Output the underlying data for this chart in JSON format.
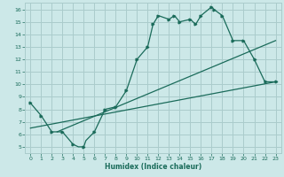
{
  "bg_color": "#cce8e8",
  "grid_color": "#aacccc",
  "line_color": "#1a6b5a",
  "xlabel": "Humidex (Indice chaleur)",
  "xlim": [
    -0.5,
    23.5
  ],
  "ylim": [
    4.5,
    16.5
  ],
  "yticks": [
    5,
    6,
    7,
    8,
    9,
    10,
    11,
    12,
    13,
    14,
    15,
    16
  ],
  "xticks": [
    0,
    1,
    2,
    3,
    4,
    5,
    6,
    7,
    8,
    9,
    10,
    11,
    12,
    13,
    14,
    15,
    16,
    17,
    18,
    19,
    20,
    21,
    22,
    23
  ],
  "main_x": [
    0,
    1,
    2,
    3,
    4,
    4.5,
    5,
    5.2,
    6,
    7,
    8,
    9,
    10,
    11,
    11.5,
    12,
    13,
    13.5,
    14,
    15,
    15.5,
    16,
    17,
    17.2,
    18,
    19,
    20,
    21,
    22,
    23
  ],
  "main_y": [
    8.5,
    7.5,
    6.2,
    6.2,
    5.2,
    5.0,
    5.0,
    5.5,
    6.2,
    8.0,
    8.2,
    9.5,
    12.0,
    13.0,
    14.8,
    15.5,
    15.2,
    15.5,
    15.0,
    15.2,
    14.8,
    15.5,
    16.2,
    16.0,
    15.5,
    13.5,
    13.5,
    12.0,
    10.2,
    10.2
  ],
  "marker_x": [
    0,
    1,
    2,
    3,
    4,
    5,
    6,
    7,
    8,
    9,
    10,
    11,
    11.5,
    12,
    13,
    13.5,
    14,
    15,
    15.5,
    16,
    17,
    17.2,
    18,
    19,
    20,
    21,
    22,
    23
  ],
  "marker_y": [
    8.5,
    7.5,
    6.2,
    6.2,
    5.2,
    5.0,
    6.2,
    8.0,
    8.2,
    9.5,
    12.0,
    13.0,
    14.8,
    15.5,
    15.2,
    15.5,
    15.0,
    15.2,
    14.8,
    15.5,
    16.2,
    16.0,
    15.5,
    13.5,
    13.5,
    12.0,
    10.2,
    10.2
  ],
  "line2_x": [
    0,
    23
  ],
  "line2_y": [
    6.5,
    10.2
  ],
  "line3_x": [
    2.5,
    23
  ],
  "line3_y": [
    6.2,
    13.5
  ]
}
